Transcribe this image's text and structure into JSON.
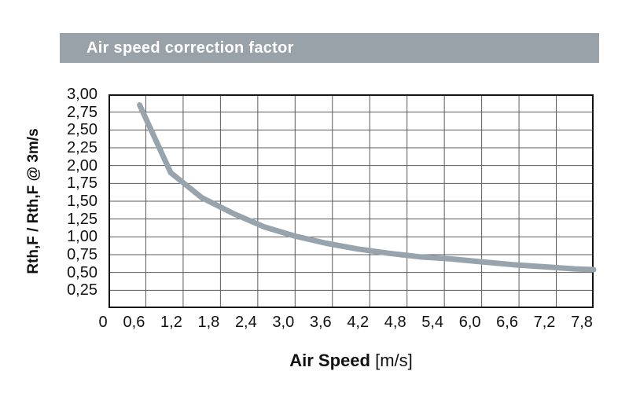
{
  "header": {
    "title": "Air speed correction factor"
  },
  "chart_data": {
    "type": "line",
    "title": "Air speed correction factor",
    "xlabel": "Air Speed",
    "xlabel_unit": "[m/s]",
    "ylabel": "Rth,F / Rth,F @ 3m/s",
    "x_range": [
      0,
      7.8
    ],
    "y_range": [
      0,
      3.0
    ],
    "x_gridline_step": 0.6,
    "y_gridline_step": 0.25,
    "x_tick_labels": [
      "0",
      "0,6",
      "1,2",
      "1,8",
      "2,4",
      "3,0",
      "3,6",
      "4,2",
      "4,8",
      "5,4",
      "6,0",
      "6,6",
      "7,2",
      "7,8"
    ],
    "y_tick_labels": [
      "3,00",
      "2,75",
      "2,50",
      "2,25",
      "2,00",
      "1,75",
      "1,50",
      "1,25",
      "1,00",
      "0,75",
      "0,50",
      "0,25"
    ],
    "grid": true,
    "legend": false,
    "series": [
      {
        "x": [
          0.5,
          1.0,
          1.5,
          2.0,
          2.5,
          3.0,
          3.5,
          4.0,
          4.5,
          5.0,
          5.5,
          6.0,
          6.5,
          7.0,
          7.5,
          7.8
        ],
        "y": [
          2.85,
          1.9,
          1.55,
          1.33,
          1.14,
          1.01,
          0.91,
          0.83,
          0.77,
          0.72,
          0.69,
          0.65,
          0.61,
          0.58,
          0.55,
          0.54
        ]
      }
    ],
    "colors": {
      "curve": "#98a4ad",
      "header_bar": "#99a2a8",
      "gridline": "#5a5a5a",
      "axis_border": "#141414",
      "text": "#111111",
      "header_text": "#ffffff"
    }
  }
}
